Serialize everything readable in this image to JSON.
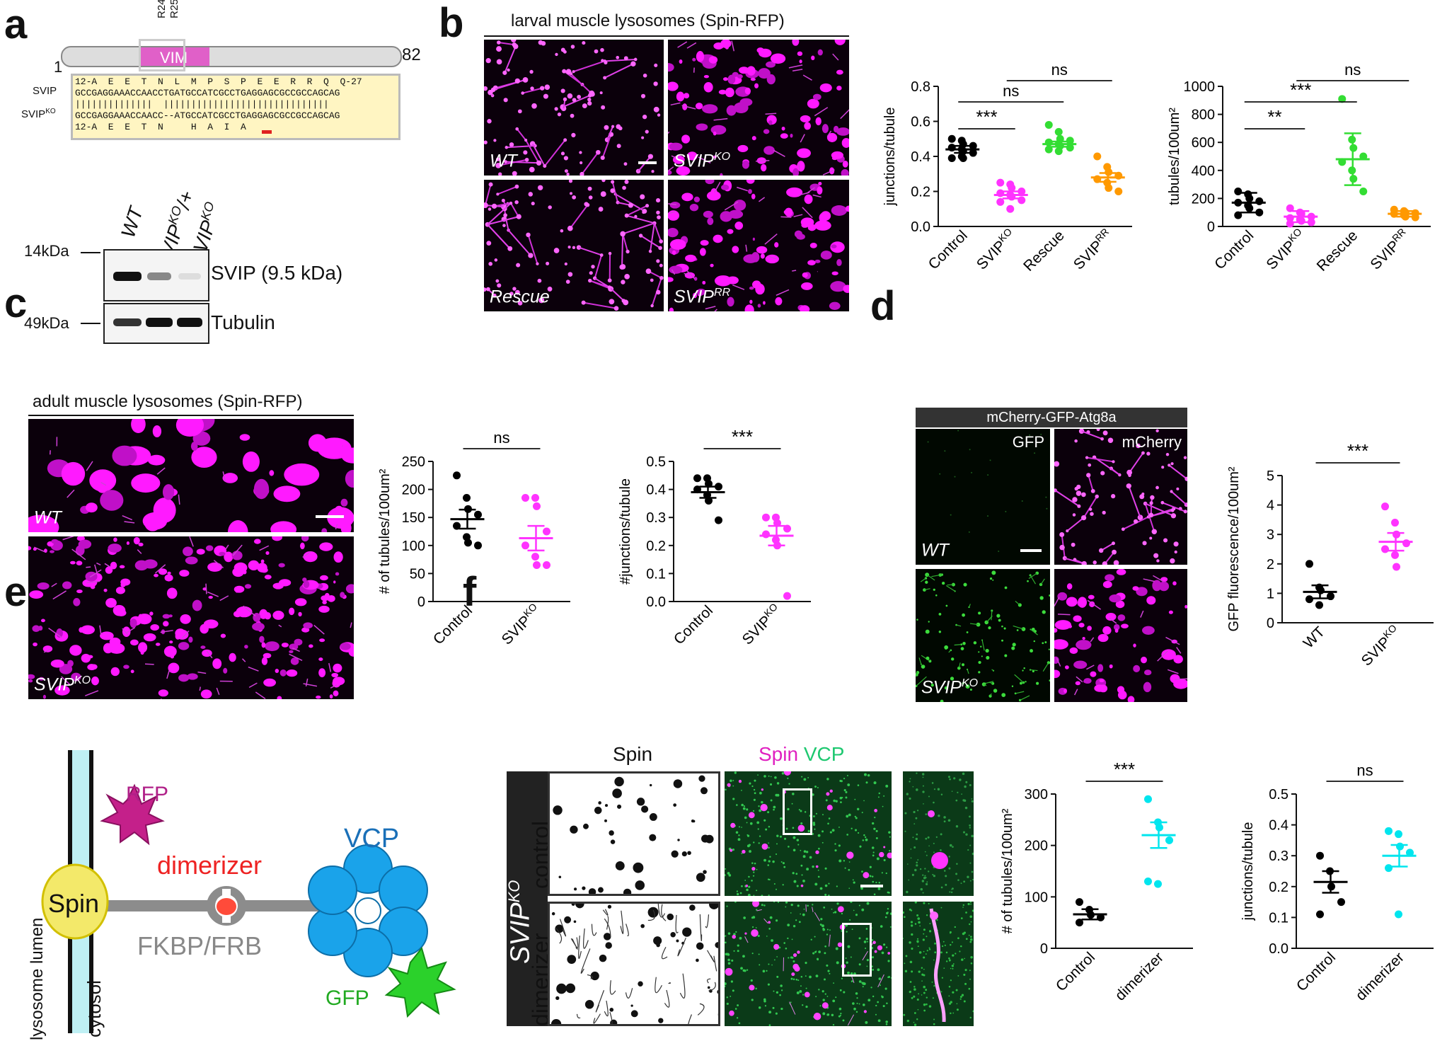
{
  "panels": {
    "a": "a",
    "b": "b",
    "c": "c",
    "d": "d",
    "e": "e",
    "f": "f"
  },
  "panel_a": {
    "domain_label": "VIM",
    "residues": [
      "R24",
      "R25"
    ],
    "start": "1",
    "end": "82",
    "rows": [
      {
        "label": "",
        "text": "12-A  E  E  T  N  L  M  P  S  P  E  E  R  R  Q  Q-27"
      },
      {
        "label": "SVIP",
        "text": "GCCGAGGAAACCAACCTGATGCCATCGCCTGAGGAGCGCCGCCAGCAG"
      },
      {
        "label": "",
        "text": "||||||||||||||  ||||||||||||||||||||||||||||||"
      },
      {
        "label": "SVIP",
        "label_sup": "KO",
        "text": "GCCGAGGAAACCAACC--ATGCCATCGCCTGAGGAGCGCCGCCAGCAG"
      },
      {
        "label": "",
        "text": "12-A  E  E  T  N     H  A  I  A"
      }
    ],
    "blot": {
      "lanes": [
        {
          "text": "WT",
          "sup": ""
        },
        {
          "text": "SVIP",
          "sup": "KO",
          "suffix": "/+"
        },
        {
          "text": "SVIP",
          "sup": "KO",
          "suffix": ""
        }
      ],
      "markers": [
        "14kDa",
        "49kDa"
      ],
      "bands": [
        "SVIP (9.5 kDa)",
        "Tubulin"
      ]
    }
  },
  "panel_b": {
    "title": "larval muscle lysosomes (Spin-RFP)",
    "images": [
      {
        "text": "WT",
        "sup": ""
      },
      {
        "text": "SVIP",
        "sup": "KO"
      },
      {
        "text": "Rescue",
        "sup": ""
      },
      {
        "text": "SVIP",
        "sup": "RR"
      }
    ]
  },
  "panel_c": {
    "title": "adult muscle lysosomes (Spin-RFP)",
    "images": [
      {
        "text": "WT",
        "sup": ""
      },
      {
        "text": "SVIP",
        "sup": "KO"
      }
    ]
  },
  "panel_d": {
    "title": "mCherry-GFP-Atg8a",
    "channels": [
      "GFP",
      "mCherry"
    ],
    "images": [
      {
        "text": "WT",
        "sup": ""
      },
      {
        "text": "SVIP",
        "sup": "KO"
      }
    ]
  },
  "panel_e": {
    "labels": {
      "rfp": "RFP",
      "spin": "Spin",
      "dimerizer": "dimerizer",
      "fkbp": "FKBP/FRB",
      "vcp": "VCP",
      "gfp": "GFP",
      "lumen": "lysosome lumen",
      "cytosol": "cytosol"
    }
  },
  "panel_f": {
    "genotype": {
      "text": "SVIP",
      "sup": "KO"
    },
    "col_headers": {
      "spin": "Spin",
      "merge_a": "Spin",
      "merge_b": "VCP"
    },
    "rows": [
      "control",
      "dimerizer"
    ]
  },
  "chart_data": [
    {
      "id": "b1",
      "type": "scatter",
      "ylabel": "junctions/tubule",
      "ylim": [
        0,
        0.8
      ],
      "yticks": [
        "0.0",
        "0.2",
        "0.4",
        "0.6",
        "0.8"
      ],
      "categories": [
        "Control",
        "SVIP|KO",
        "Rescue",
        "SVIP|RR"
      ],
      "series": [
        {
          "color": "#000000",
          "mean": 0.44,
          "err": 0.02,
          "points": [
            0.5,
            0.49,
            0.47,
            0.46,
            0.45,
            0.44,
            0.43,
            0.42,
            0.39,
            0.4,
            0.39
          ]
        },
        {
          "color": "#ff33ff",
          "mean": 0.18,
          "err": 0.02,
          "points": [
            0.25,
            0.24,
            0.22,
            0.2,
            0.19,
            0.18,
            0.17,
            0.15,
            0.14,
            0.1
          ]
        },
        {
          "color": "#33dd33",
          "mean": 0.47,
          "err": 0.015,
          "points": [
            0.58,
            0.54,
            0.5,
            0.49,
            0.48,
            0.47,
            0.46,
            0.45,
            0.44,
            0.43
          ]
        },
        {
          "color": "#ff9900",
          "mean": 0.28,
          "err": 0.025,
          "points": [
            0.4,
            0.34,
            0.31,
            0.29,
            0.27,
            0.25,
            0.22,
            0.2
          ]
        }
      ],
      "sig": [
        {
          "a": 0,
          "b": 1,
          "text": "***",
          "level": 0
        },
        {
          "a": 0,
          "b": 2,
          "text": "ns",
          "level": 1
        },
        {
          "a": 1,
          "b": 3,
          "text": "ns",
          "level": 2
        }
      ]
    },
    {
      "id": "b2",
      "type": "scatter",
      "ylabel": "tubules/100um²",
      "ylim": [
        0,
        1000
      ],
      "yticks": [
        "0",
        "200",
        "400",
        "600",
        "800",
        "1000"
      ],
      "categories": [
        "Control",
        "SVIP|KO",
        "Rescue",
        "SVIP|RR"
      ],
      "series": [
        {
          "color": "#000000",
          "mean": 170,
          "err": 70,
          "points": [
            250,
            230,
            200,
            180,
            170,
            150,
            130,
            100,
            80
          ]
        },
        {
          "color": "#ff33ff",
          "mean": 70,
          "err": 40,
          "points": [
            130,
            100,
            90,
            70,
            60,
            50,
            40,
            30,
            20
          ]
        },
        {
          "color": "#33dd33",
          "mean": 480,
          "err": 185,
          "points": [
            910,
            620,
            560,
            500,
            460,
            400,
            340,
            250
          ]
        },
        {
          "color": "#ff9900",
          "mean": 90,
          "err": 20,
          "points": [
            120,
            110,
            100,
            95,
            90,
            80,
            70,
            65
          ]
        }
      ],
      "sig": [
        {
          "a": 0,
          "b": 1,
          "text": "**",
          "level": 0
        },
        {
          "a": 0,
          "b": 2,
          "text": "***",
          "level": 1
        },
        {
          "a": 1,
          "b": 3,
          "text": "ns",
          "level": 2
        }
      ]
    },
    {
      "id": "c1",
      "type": "scatter",
      "ylabel": "# of tubules/100um²",
      "ylim": [
        0,
        250
      ],
      "yticks": [
        "0",
        "50",
        "100",
        "150",
        "200",
        "250"
      ],
      "categories": [
        "Control",
        "SVIP|KO"
      ],
      "series": [
        {
          "color": "#000000",
          "mean": 147,
          "err": 17,
          "points": [
            225,
            185,
            165,
            155,
            135,
            115,
            105,
            100
          ]
        },
        {
          "color": "#ff33ff",
          "mean": 113,
          "err": 22,
          "points": [
            185,
            185,
            170,
            125,
            100,
            80,
            65,
            65
          ]
        }
      ],
      "sig": [
        {
          "a": 0,
          "b": 1,
          "text": "ns",
          "level": 0
        }
      ]
    },
    {
      "id": "c2",
      "type": "scatter",
      "ylabel": "#junctions/tubule",
      "ylim": [
        0,
        0.5
      ],
      "yticks": [
        "0.0",
        "0.1",
        "0.2",
        "0.3",
        "0.4",
        "0.5"
      ],
      "categories": [
        "Control",
        "SVIP|KO"
      ],
      "series": [
        {
          "color": "#000000",
          "mean": 0.39,
          "err": 0.02,
          "points": [
            0.44,
            0.44,
            0.42,
            0.41,
            0.4,
            0.38,
            0.36,
            0.29
          ]
        },
        {
          "color": "#ff33ff",
          "mean": 0.235,
          "err": 0.035,
          "points": [
            0.3,
            0.3,
            0.28,
            0.26,
            0.24,
            0.22,
            0.2,
            0.02
          ]
        }
      ],
      "sig": [
        {
          "a": 0,
          "b": 1,
          "text": "***",
          "level": 0
        }
      ]
    },
    {
      "id": "d1",
      "type": "scatter",
      "ylabel": "GFP fluorescence/100um²",
      "ylim": [
        0,
        5
      ],
      "yticks": [
        "0",
        "1",
        "2",
        "3",
        "4",
        "5"
      ],
      "categories": [
        "WT",
        "SVIP|KO"
      ],
      "series": [
        {
          "color": "#000000",
          "mean": 1.05,
          "err": 0.22,
          "points": [
            2.0,
            1.2,
            1.1,
            0.9,
            0.8,
            0.6
          ]
        },
        {
          "color": "#ff33ff",
          "mean": 2.75,
          "err": 0.3,
          "points": [
            3.95,
            3.4,
            3.0,
            2.7,
            2.5,
            2.3,
            1.9
          ]
        }
      ],
      "sig": [
        {
          "a": 0,
          "b": 1,
          "text": "***",
          "level": 0
        }
      ]
    },
    {
      "id": "f1",
      "type": "scatter",
      "ylabel": "# of tubules/100um²",
      "ylim": [
        0,
        300
      ],
      "yticks": [
        "0",
        "100",
        "200",
        "300"
      ],
      "categories": [
        "Control",
        "dimerizer"
      ],
      "series": [
        {
          "color": "#000000",
          "mean": 66,
          "err": 10,
          "points": [
            90,
            75,
            65,
            60,
            50
          ]
        },
        {
          "color": "#00e5ee",
          "mean": 220,
          "err": 25,
          "points": [
            290,
            245,
            235,
            210,
            130,
            125
          ]
        }
      ],
      "sig": [
        {
          "a": 0,
          "b": 1,
          "text": "***",
          "level": 0
        }
      ]
    },
    {
      "id": "f2",
      "type": "scatter",
      "ylabel": "junctions/tubule",
      "ylim": [
        0,
        0.5
      ],
      "yticks": [
        "0.0",
        "0.1",
        "0.2",
        "0.3",
        "0.4",
        "0.5"
      ],
      "categories": [
        "Control",
        "dimerizer"
      ],
      "series": [
        {
          "color": "#000000",
          "mean": 0.215,
          "err": 0.035,
          "points": [
            0.3,
            0.25,
            0.2,
            0.15,
            0.11
          ]
        },
        {
          "color": "#00e5ee",
          "mean": 0.3,
          "err": 0.035,
          "points": [
            0.38,
            0.37,
            0.33,
            0.31,
            0.26,
            0.11
          ]
        }
      ],
      "sig": [
        {
          "a": 0,
          "b": 1,
          "text": "ns",
          "level": 0
        }
      ]
    }
  ]
}
